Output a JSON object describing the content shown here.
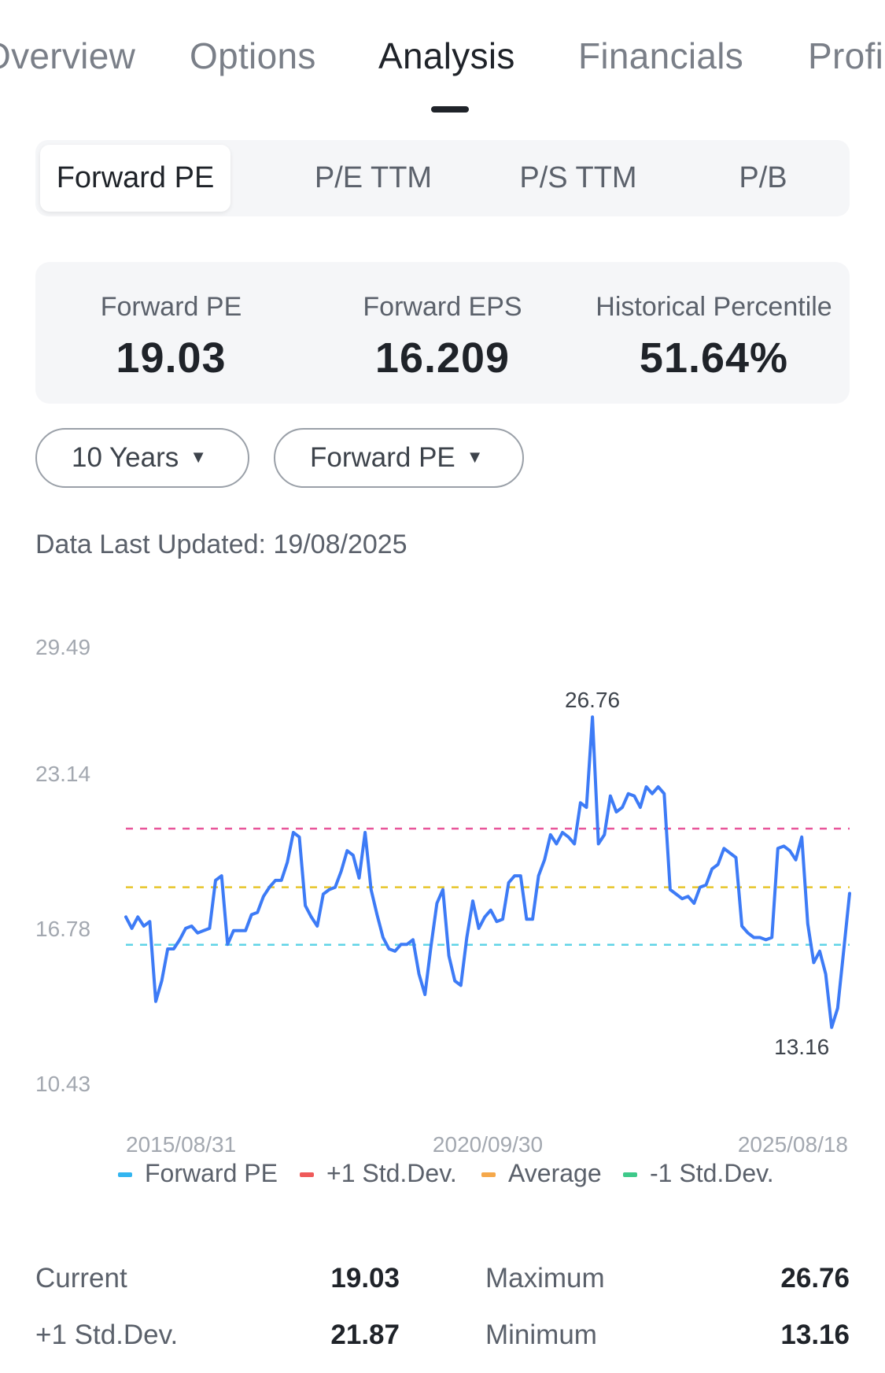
{
  "top_tabs": [
    {
      "label": "Overview"
    },
    {
      "label": "Options"
    },
    {
      "label": "Analysis",
      "active": true
    },
    {
      "label": "Financials"
    },
    {
      "label": "Profile"
    }
  ],
  "segments": [
    {
      "label": "Forward PE",
      "active": true
    },
    {
      "label": "P/E TTM"
    },
    {
      "label": "P/S TTM"
    },
    {
      "label": "P/B"
    }
  ],
  "stats": [
    {
      "label": "Forward PE",
      "value": "19.03"
    },
    {
      "label": "Forward EPS",
      "value": "16.209"
    },
    {
      "label": "Historical Percentile",
      "value": "51.64%"
    }
  ],
  "filters": {
    "period": "10 Years",
    "metric": "Forward PE"
  },
  "updated": "Data Last Updated: 19/08/2025",
  "chart_data": {
    "type": "line",
    "y_ticks": [
      "29.49",
      "23.14",
      "16.78",
      "10.43"
    ],
    "ylim": [
      10.43,
      29.49
    ],
    "x_ticks": [
      "2015/08/31",
      "2020/09/30",
      "2025/08/18"
    ],
    "max_label": "26.76",
    "min_label": "13.16",
    "reference_lines": {
      "plus_1_std": 21.87,
      "average": 19.3,
      "minus_1_std": 16.78
    },
    "series": [
      {
        "name": "Forward PE",
        "values": [
          18.0,
          17.5,
          18.0,
          17.6,
          17.8,
          14.3,
          15.2,
          16.6,
          16.6,
          17.0,
          17.5,
          17.6,
          17.3,
          17.4,
          17.5,
          19.6,
          19.8,
          16.8,
          17.4,
          17.4,
          17.4,
          18.1,
          18.2,
          18.9,
          19.3,
          19.6,
          19.6,
          20.4,
          21.7,
          21.5,
          18.5,
          18.0,
          17.6,
          19.0,
          19.2,
          19.3,
          20.0,
          20.9,
          20.7,
          19.7,
          21.7,
          19.2,
          18.1,
          17.1,
          16.6,
          16.5,
          16.8,
          16.8,
          17.0,
          15.5,
          14.6,
          16.7,
          18.6,
          19.2,
          16.3,
          15.2,
          15.0,
          17.1,
          18.7,
          17.5,
          18.0,
          18.3,
          17.8,
          17.9,
          19.5,
          19.8,
          19.8,
          17.9,
          17.9,
          19.8,
          20.5,
          21.6,
          21.2,
          21.7,
          21.5,
          21.2,
          23.0,
          22.8,
          26.76,
          21.2,
          21.6,
          23.3,
          22.6,
          22.8,
          23.4,
          23.3,
          22.8,
          23.7,
          23.4,
          23.7,
          23.4,
          19.2,
          19.0,
          18.8,
          18.9,
          18.6,
          19.3,
          19.4,
          20.1,
          20.3,
          21.0,
          20.8,
          20.6,
          17.6,
          17.3,
          17.1,
          17.1,
          17.0,
          17.1,
          21.0,
          21.1,
          20.9,
          20.5,
          21.5,
          17.7,
          16.0,
          16.5,
          15.5,
          13.16,
          14.0,
          16.5,
          19.03
        ]
      },
      {
        "name": "+1 Std.Dev."
      },
      {
        "name": "Average"
      },
      {
        "name": "-1 Std.Dev."
      }
    ],
    "legend_position": "bottom",
    "grid": false
  },
  "colors": {
    "line": "#3d7bf6",
    "plus_std": "#e8559a",
    "average": "#e7c52a",
    "minus_std": "#5fd3e6",
    "legend_forward_pe": "#33b5f0",
    "legend_plus_std": "#ef5a5a",
    "legend_average": "#f5a84b",
    "legend_minus_std": "#3ec98a"
  },
  "summary": [
    {
      "label": "Current",
      "value": "19.03",
      "label2": "Maximum",
      "value2": "26.76"
    },
    {
      "label": "+1 Std.Dev.",
      "value": "21.87",
      "label2": "Minimum",
      "value2": "13.16"
    }
  ]
}
